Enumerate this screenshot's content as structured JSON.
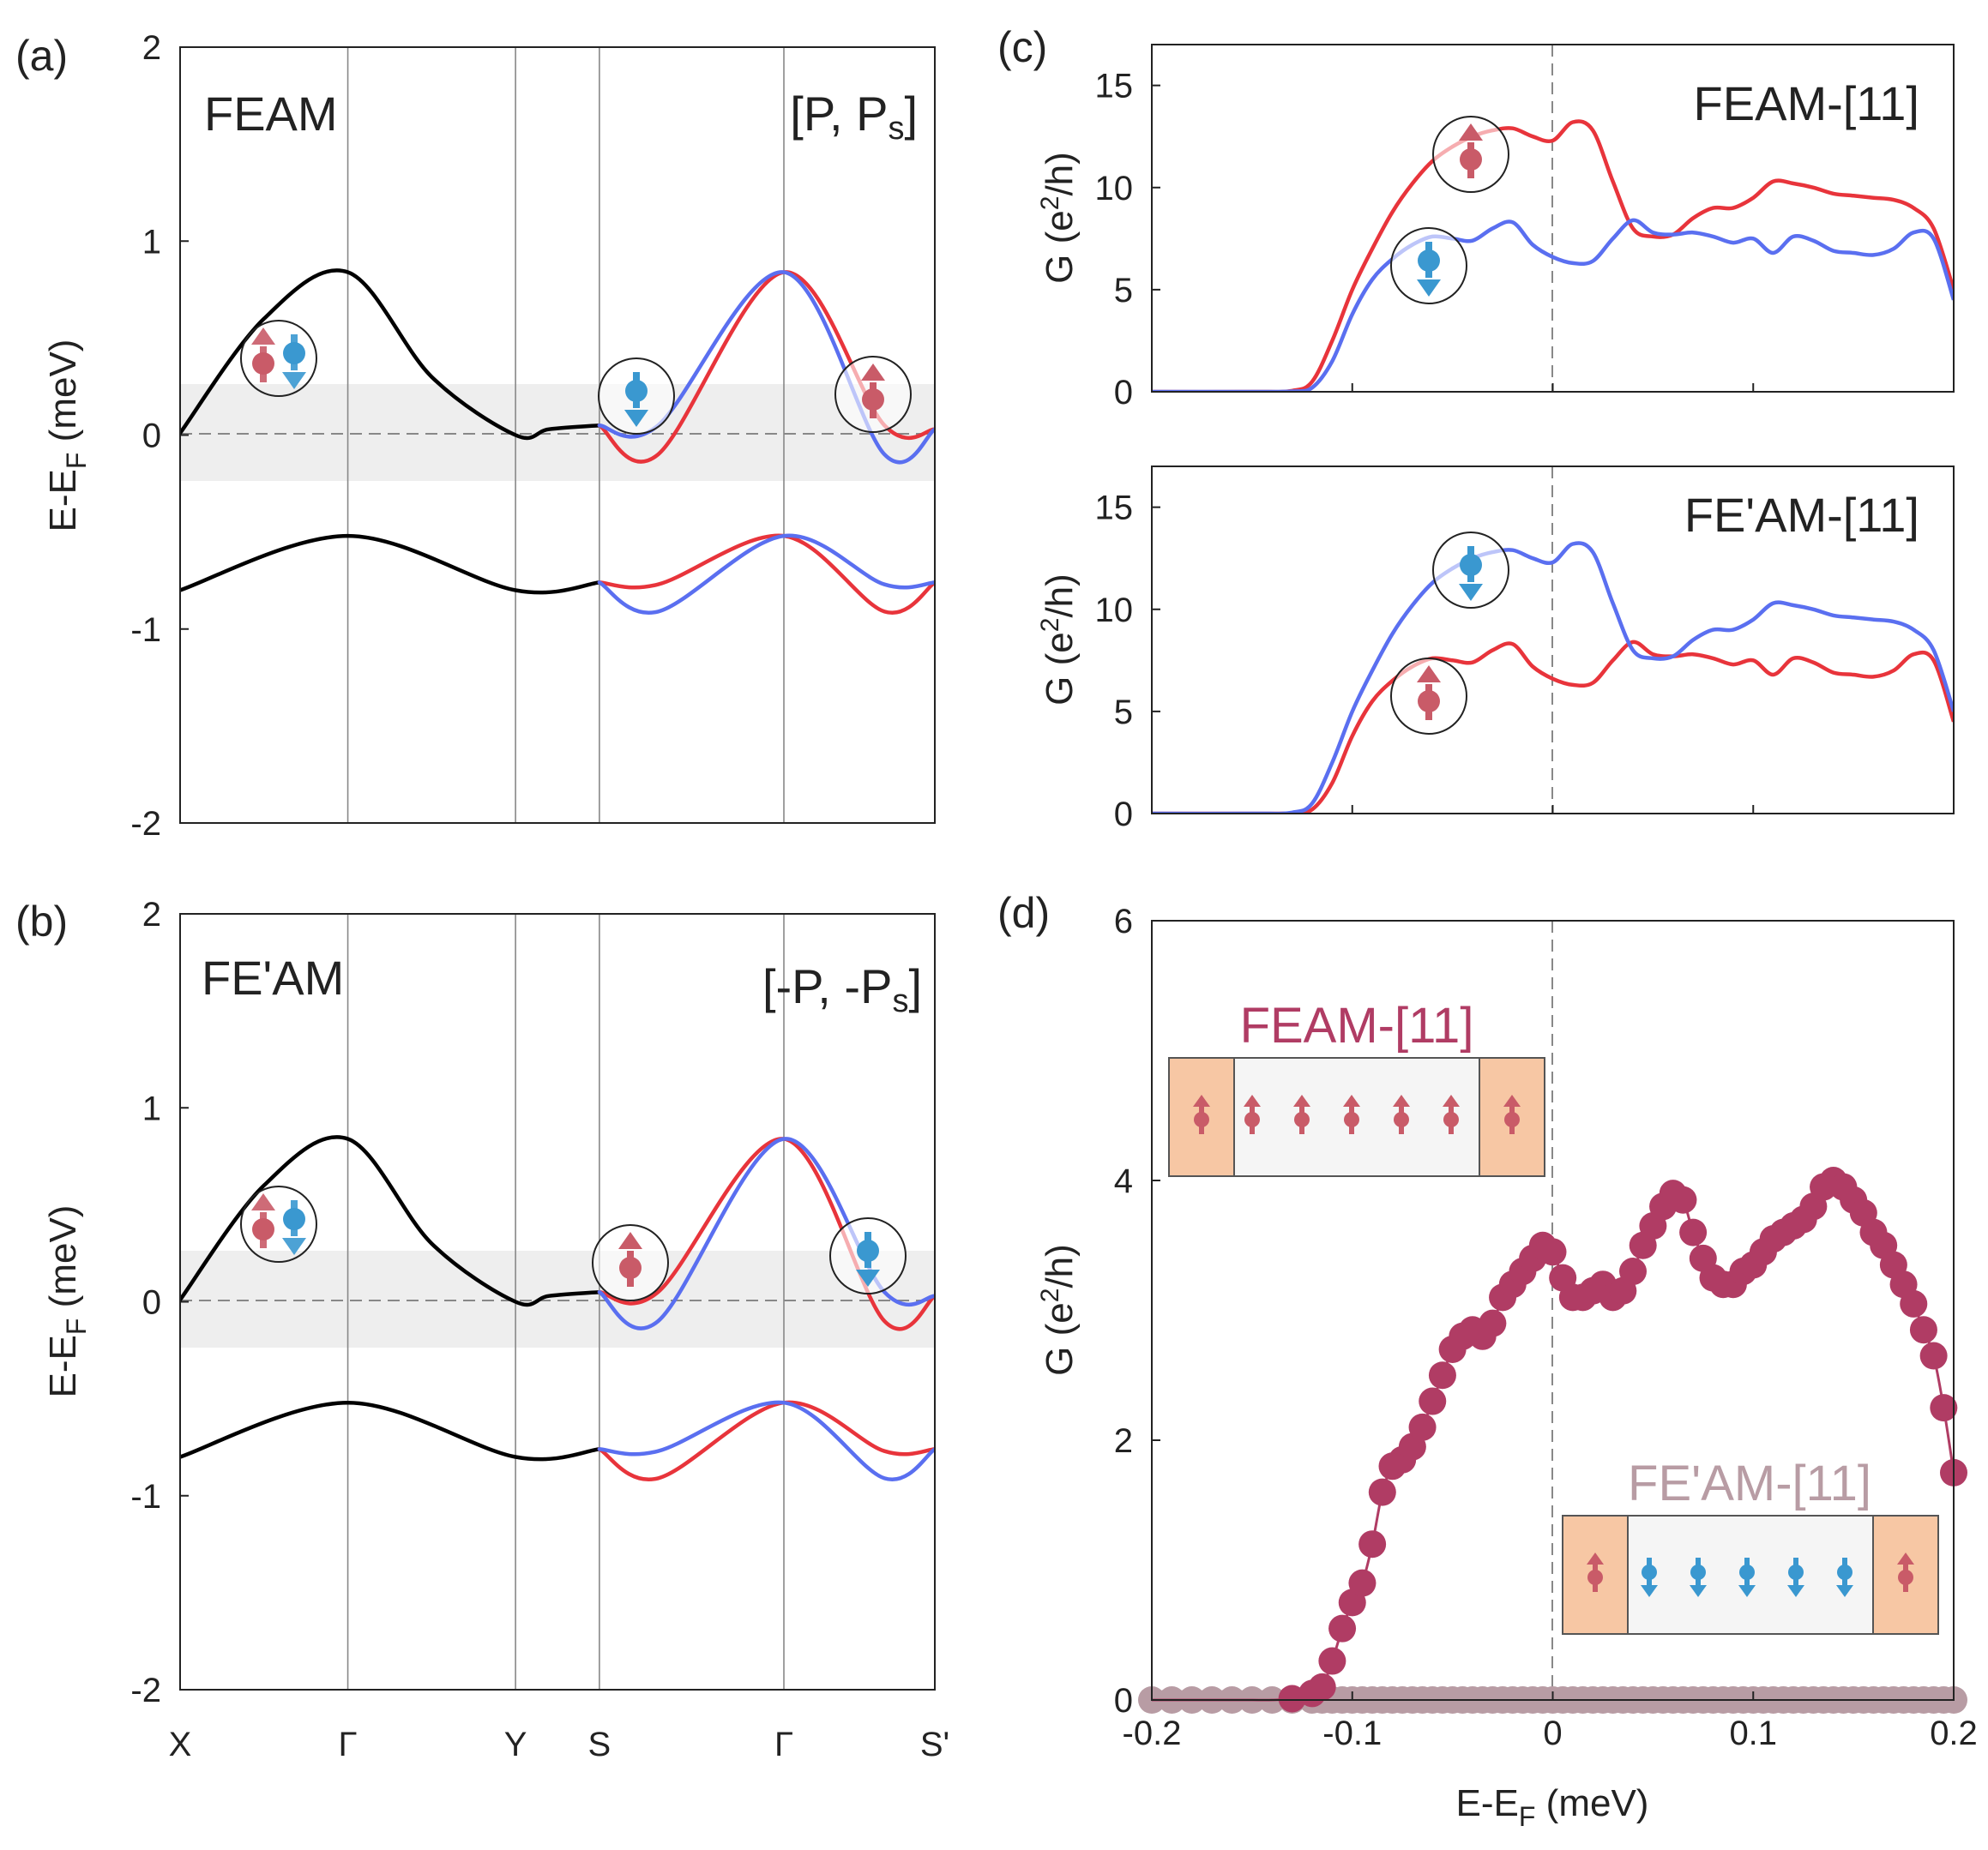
{
  "colors": {
    "up": "#e8343b",
    "down": "#5a6ff0",
    "black": "#000000",
    "magenta": "#b03c64",
    "mauve": "#b89ca4",
    "spin_up_icon": "#c95b68",
    "spin_down_icon": "#3a98d0",
    "lead_fill": "#f7c7a4",
    "center_fill": "#f5f5f5",
    "shade": "#eeeeee"
  },
  "panels": {
    "a": {
      "label": "(a)",
      "title": "FEAM",
      "note_main": "[P, P",
      "note_sub": "s",
      "note_end": "]",
      "ylabel_main": "E-E",
      "ylabel_sub": "F",
      "ylabel_end": " (meV)",
      "yticks": [
        "2",
        "1",
        "0",
        "-1",
        "-2"
      ]
    },
    "b": {
      "label": "(b)",
      "title": "FE'AM",
      "note_main": "[-P, -P",
      "note_sub": "s",
      "note_end": "]",
      "ylabel_main": "E-E",
      "ylabel_sub": "F",
      "ylabel_end": " (meV)",
      "yticks": [
        "2",
        "1",
        "0",
        "-1",
        "-2"
      ],
      "kpoints": [
        "X",
        "Γ",
        "Y",
        "S",
        "Γ",
        "S'"
      ]
    },
    "c": {
      "label": "(c)",
      "top_title": "FEAM-[11]",
      "bottom_title": "FE'AM-[11]",
      "ylabel_main": "G (e",
      "ylabel_sup": "2",
      "ylabel_end": "/h)",
      "yticks": [
        "15",
        "10",
        "5",
        "0"
      ]
    },
    "d": {
      "label": "(d)",
      "ylabel_main": "G (e",
      "ylabel_sup": "2",
      "ylabel_end": "/h)",
      "yticks": [
        "6",
        "4",
        "2",
        "0"
      ],
      "xticks": [
        "-0.2",
        "-0.1",
        "0",
        "0.1",
        "0.2"
      ],
      "xlabel_main": "E-E",
      "xlabel_sub": "F",
      "xlabel_end": " (meV)",
      "legend_feam": "FEAM-[11]",
      "legend_feam_prime": "FE'AM-[11]"
    }
  },
  "chart_data": [
    {
      "panel": "a",
      "type": "line",
      "title": "FEAM",
      "ylabel": "E-EF (meV)",
      "ylim": [
        -2,
        2
      ],
      "kpath": [
        "X",
        "Γ",
        "Y",
        "S",
        "Γ",
        "S'"
      ],
      "shaded_energy_window": [
        -0.25,
        0.25
      ],
      "series": [
        {
          "name": "band-upper-XGYS",
          "color": "black",
          "points": [
            [
              0,
              0.01
            ],
            [
              0.5,
              0.6
            ],
            [
              1,
              0.84
            ],
            [
              1.5,
              0.3
            ],
            [
              2,
              0.0
            ],
            [
              2.2,
              0.03
            ],
            [
              2.5,
              0.05
            ]
          ]
        },
        {
          "name": "band-lower-XGYS",
          "color": "black",
          "points": [
            [
              0,
              -0.8
            ],
            [
              1,
              -0.52
            ],
            [
              2,
              -0.8
            ],
            [
              2.5,
              -0.76
            ]
          ]
        },
        {
          "name": "upper-spin-up",
          "color": "red",
          "points": [
            [
              2.5,
              0.05
            ],
            [
              2.85,
              -0.1
            ],
            [
              3.6,
              0.84
            ],
            [
              4.2,
              0.05
            ],
            [
              4.5,
              0.03
            ]
          ]
        },
        {
          "name": "upper-spin-down",
          "color": "blue",
          "points": [
            [
              2.5,
              0.05
            ],
            [
              2.85,
              0.05
            ],
            [
              3.6,
              0.84
            ],
            [
              4.2,
              -0.1
            ],
            [
              4.5,
              0.03
            ]
          ]
        },
        {
          "name": "lower-spin-up",
          "color": "red",
          "points": [
            [
              2.5,
              -0.76
            ],
            [
              2.85,
              -0.77
            ],
            [
              3.6,
              -0.52
            ],
            [
              4.2,
              -0.91
            ],
            [
              4.5,
              -0.76
            ]
          ]
        },
        {
          "name": "lower-spin-down",
          "color": "blue",
          "points": [
            [
              2.5,
              -0.76
            ],
            [
              2.85,
              -0.91
            ],
            [
              3.6,
              -0.52
            ],
            [
              4.2,
              -0.77
            ],
            [
              4.5,
              -0.76
            ]
          ]
        }
      ]
    },
    {
      "panel": "b",
      "type": "line",
      "title": "FE'AM",
      "ylabel": "E-EF (meV)",
      "ylim": [
        -2,
        2
      ],
      "kpath": [
        "X",
        "Γ",
        "Y",
        "S",
        "Γ",
        "S'"
      ],
      "shaded_energy_window": [
        -0.25,
        0.25
      ],
      "series": [
        {
          "name": "band-upper-XGYS",
          "color": "black",
          "points": [
            [
              0,
              0.01
            ],
            [
              0.5,
              0.6
            ],
            [
              1,
              0.84
            ],
            [
              1.5,
              0.3
            ],
            [
              2,
              0.0
            ],
            [
              2.2,
              0.03
            ],
            [
              2.5,
              0.05
            ]
          ]
        },
        {
          "name": "band-lower-XGYS",
          "color": "black",
          "points": [
            [
              0,
              -0.8
            ],
            [
              1,
              -0.52
            ],
            [
              2,
              -0.8
            ],
            [
              2.5,
              -0.76
            ]
          ]
        },
        {
          "name": "upper-spin-up",
          "color": "red",
          "points": [
            [
              2.5,
              0.05
            ],
            [
              2.85,
              0.05
            ],
            [
              3.6,
              0.84
            ],
            [
              4.2,
              -0.1
            ],
            [
              4.5,
              0.03
            ]
          ]
        },
        {
          "name": "upper-spin-down",
          "color": "blue",
          "points": [
            [
              2.5,
              0.05
            ],
            [
              2.85,
              -0.1
            ],
            [
              3.6,
              0.84
            ],
            [
              4.2,
              0.05
            ],
            [
              4.5,
              0.03
            ]
          ]
        },
        {
          "name": "lower-spin-up",
          "color": "red",
          "points": [
            [
              2.5,
              -0.76
            ],
            [
              2.85,
              -0.91
            ],
            [
              3.6,
              -0.52
            ],
            [
              4.2,
              -0.77
            ],
            [
              4.5,
              -0.76
            ]
          ]
        },
        {
          "name": "lower-spin-down",
          "color": "blue",
          "points": [
            [
              2.5,
              -0.76
            ],
            [
              2.85,
              -0.77
            ],
            [
              3.6,
              -0.52
            ],
            [
              4.2,
              -0.91
            ],
            [
              4.5,
              -0.76
            ]
          ]
        }
      ]
    },
    {
      "panel": "c-top",
      "type": "line",
      "title": "FEAM-[11]",
      "ylabel": "G (e2/h)",
      "xlim": [
        -0.2,
        0.2
      ],
      "ylim": [
        0,
        17
      ],
      "x": [
        -0.2,
        -0.15,
        -0.13,
        -0.12,
        -0.11,
        -0.1,
        -0.09,
        -0.08,
        -0.07,
        -0.06,
        -0.05,
        -0.04,
        -0.03,
        -0.02,
        -0.01,
        0,
        0.01,
        0.02,
        0.03,
        0.04,
        0.05,
        0.06,
        0.07,
        0.08,
        0.09,
        0.1,
        0.11,
        0.12,
        0.13,
        0.14,
        0.15,
        0.16,
        0.17,
        0.18,
        0.19,
        0.2
      ],
      "series": [
        {
          "name": "spin-up",
          "color": "red",
          "values": [
            0,
            0,
            0.05,
            0.5,
            2.5,
            5.0,
            7.0,
            8.8,
            10.2,
            11.3,
            12.0,
            12.5,
            12.8,
            12.9,
            12.5,
            12.3,
            13.2,
            12.8,
            10.3,
            8.0,
            7.6,
            7.7,
            8.5,
            9.0,
            9.0,
            9.5,
            10.3,
            10.2,
            10.0,
            9.7,
            9.6,
            9.5,
            9.4,
            9.0,
            8.0,
            5.0
          ]
        },
        {
          "name": "spin-down",
          "color": "blue",
          "values": [
            0,
            0,
            0.02,
            0.2,
            1.5,
            3.8,
            5.5,
            6.5,
            7.2,
            7.6,
            7.5,
            7.4,
            8.0,
            8.3,
            7.2,
            6.6,
            6.3,
            6.4,
            7.5,
            8.4,
            7.8,
            7.7,
            7.8,
            7.6,
            7.3,
            7.5,
            6.8,
            7.6,
            7.4,
            6.9,
            6.8,
            6.7,
            7.0,
            7.8,
            7.5,
            4.5
          ]
        }
      ]
    },
    {
      "panel": "c-bottom",
      "type": "line",
      "title": "FE'AM-[11]",
      "ylabel": "G (e2/h)",
      "xlim": [
        -0.2,
        0.2
      ],
      "ylim": [
        0,
        17
      ],
      "x": [
        -0.2,
        -0.15,
        -0.13,
        -0.12,
        -0.11,
        -0.1,
        -0.09,
        -0.08,
        -0.07,
        -0.06,
        -0.05,
        -0.04,
        -0.03,
        -0.02,
        -0.01,
        0,
        0.01,
        0.02,
        0.03,
        0.04,
        0.05,
        0.06,
        0.07,
        0.08,
        0.09,
        0.1,
        0.11,
        0.12,
        0.13,
        0.14,
        0.15,
        0.16,
        0.17,
        0.18,
        0.19,
        0.2
      ],
      "series": [
        {
          "name": "spin-up",
          "color": "red",
          "values": [
            0,
            0,
            0.02,
            0.2,
            1.5,
            3.8,
            5.5,
            6.5,
            7.2,
            7.6,
            7.5,
            7.4,
            8.0,
            8.3,
            7.2,
            6.6,
            6.3,
            6.4,
            7.5,
            8.4,
            7.8,
            7.7,
            7.8,
            7.6,
            7.3,
            7.5,
            6.8,
            7.6,
            7.4,
            6.9,
            6.8,
            6.7,
            7.0,
            7.8,
            7.5,
            4.5
          ]
        },
        {
          "name": "spin-down",
          "color": "blue",
          "values": [
            0,
            0,
            0.05,
            0.5,
            2.5,
            5.0,
            7.0,
            8.8,
            10.2,
            11.3,
            12.0,
            12.5,
            12.8,
            12.9,
            12.5,
            12.3,
            13.2,
            12.8,
            10.3,
            8.0,
            7.6,
            7.7,
            8.5,
            9.0,
            9.0,
            9.5,
            10.3,
            10.2,
            10.0,
            9.7,
            9.6,
            9.5,
            9.4,
            9.0,
            8.0,
            5.0
          ]
        }
      ]
    },
    {
      "panel": "d",
      "type": "scatter",
      "xlabel": "E-EF (meV)",
      "ylabel": "G (e2/h)",
      "xlim": [
        -0.2,
        0.2
      ],
      "ylim": [
        0,
        6
      ],
      "x": [
        -0.2,
        -0.19,
        -0.18,
        -0.17,
        -0.16,
        -0.15,
        -0.14,
        -0.13,
        -0.12,
        -0.115,
        -0.11,
        -0.105,
        -0.1,
        -0.095,
        -0.09,
        -0.085,
        -0.08,
        -0.075,
        -0.07,
        -0.065,
        -0.06,
        -0.055,
        -0.05,
        -0.045,
        -0.04,
        -0.035,
        -0.03,
        -0.025,
        -0.02,
        -0.015,
        -0.01,
        -0.005,
        0,
        0.005,
        0.01,
        0.015,
        0.02,
        0.025,
        0.03,
        0.035,
        0.04,
        0.045,
        0.05,
        0.055,
        0.06,
        0.065,
        0.07,
        0.075,
        0.08,
        0.085,
        0.09,
        0.095,
        0.1,
        0.105,
        0.11,
        0.115,
        0.12,
        0.125,
        0.13,
        0.135,
        0.14,
        0.145,
        0.15,
        0.155,
        0.16,
        0.165,
        0.17,
        0.175,
        0.18,
        0.185,
        0.19,
        0.195,
        0.2
      ],
      "series": [
        {
          "name": "FEAM-[11]",
          "color": "magenta",
          "values": [
            0,
            0,
            0,
            0,
            0,
            0,
            0,
            0.01,
            0.05,
            0.1,
            0.3,
            0.55,
            0.75,
            0.9,
            1.2,
            1.6,
            1.8,
            1.85,
            1.95,
            2.1,
            2.3,
            2.5,
            2.7,
            2.8,
            2.85,
            2.8,
            2.9,
            3.1,
            3.2,
            3.3,
            3.4,
            3.5,
            3.45,
            3.25,
            3.1,
            3.1,
            3.15,
            3.2,
            3.1,
            3.15,
            3.3,
            3.5,
            3.65,
            3.8,
            3.9,
            3.85,
            3.6,
            3.4,
            3.25,
            3.2,
            3.2,
            3.3,
            3.35,
            3.45,
            3.55,
            3.6,
            3.65,
            3.7,
            3.8,
            3.95,
            4.0,
            3.95,
            3.85,
            3.75,
            3.6,
            3.5,
            3.35,
            3.2,
            3.05,
            2.85,
            2.65,
            2.25,
            1.75
          ]
        },
        {
          "name": "FE'AM-[11]",
          "color": "mauve",
          "values": [
            0,
            0,
            0,
            0,
            0,
            0,
            0,
            0,
            0,
            0,
            0,
            0,
            0,
            0,
            0,
            0,
            0,
            0,
            0,
            0,
            0,
            0,
            0,
            0,
            0,
            0,
            0,
            0,
            0,
            0,
            0,
            0,
            0,
            0,
            0,
            0,
            0,
            0,
            0,
            0,
            0,
            0,
            0,
            0,
            0,
            0,
            0,
            0,
            0,
            0,
            0,
            0,
            0,
            0,
            0,
            0,
            0,
            0,
            0,
            0,
            0,
            0,
            0,
            0,
            0,
            0,
            0,
            0,
            0,
            0,
            0,
            0,
            0
          ]
        }
      ]
    }
  ]
}
